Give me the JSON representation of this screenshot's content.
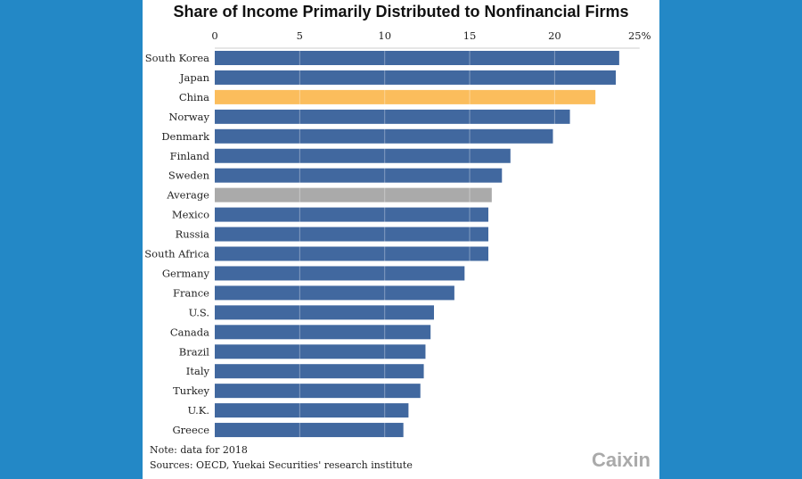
{
  "chart_data": {
    "type": "bar",
    "orientation": "horizontal",
    "title": "Share of Income Primarily Distributed to Nonfinancial Firms",
    "categories": [
      "South Korea",
      "Japan",
      "China",
      "Norway",
      "Denmark",
      "Finland",
      "Sweden",
      "Average",
      "Mexico",
      "Russia",
      "South Africa",
      "Germany",
      "France",
      "U.S.",
      "Canada",
      "Brazil",
      "Italy",
      "Turkey",
      "U.K.",
      "Greece"
    ],
    "values": [
      23.8,
      23.6,
      22.4,
      20.9,
      19.9,
      17.4,
      16.9,
      16.3,
      16.1,
      16.1,
      16.1,
      14.7,
      14.1,
      12.9,
      12.7,
      12.4,
      12.3,
      12.1,
      11.4,
      11.1
    ],
    "xlim": [
      0,
      25
    ],
    "ticks": [
      "0",
      "5",
      "10",
      "15",
      "20",
      "25%"
    ],
    "grid": true,
    "colors": {
      "default": "#41689f",
      "highlight": "#fbbd5c",
      "average": "#aaaaaa"
    },
    "highlight": "China",
    "average": "Average"
  },
  "note": "Note: data for 2018",
  "sources": "Sources: OECD, Yuekai Securities' research institute",
  "logo": "Caixin"
}
